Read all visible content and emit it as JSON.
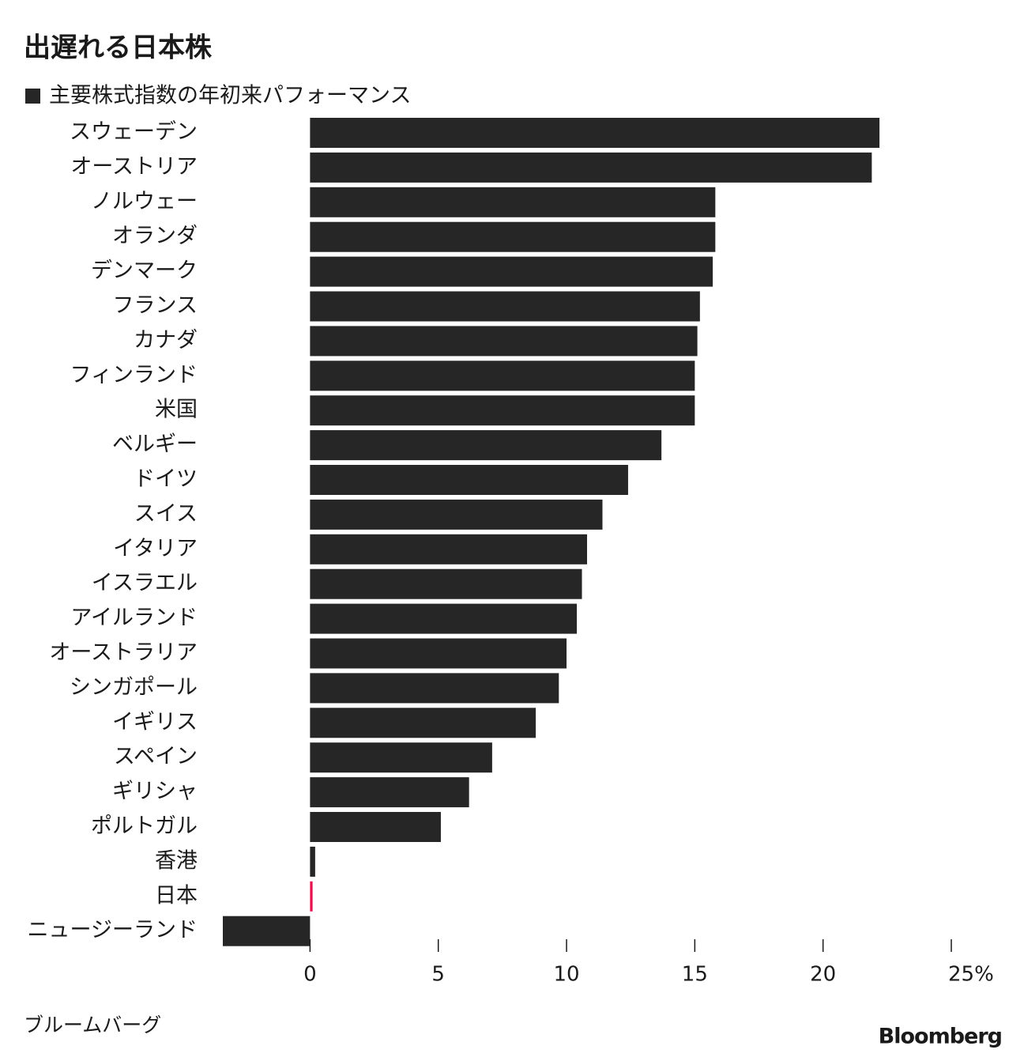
{
  "chart_data": {
    "type": "hbar",
    "title": "出遅れる日本株",
    "categories": [
      "スウェーデン",
      "オーストリア",
      "ノルウェー",
      "オランダ",
      "デンマーク",
      "フランス",
      "カナダ",
      "フィンランド",
      "米国",
      "ベルギー",
      "ドイツ",
      "スイス",
      "イタリア",
      "イスラエル",
      "アイルランド",
      "オーストラリア",
      "シンガポール",
      "イギリス",
      "スペイン",
      "ギリシャ",
      "ポルトガル",
      "香港",
      "日本",
      "ニュージーランド"
    ],
    "series": [
      {
        "name": "主要株式指数の年初来パフォーマンス",
        "color": "#262626",
        "values": [
          22.2,
          21.9,
          15.8,
          15.8,
          15.7,
          15.2,
          15.1,
          15.0,
          15.0,
          13.7,
          12.4,
          11.4,
          10.8,
          10.6,
          10.4,
          10.0,
          9.7,
          8.8,
          7.1,
          6.2,
          5.1,
          0.2,
          0.1,
          -3.4
        ],
        "colors": [
          "#262626",
          "#262626",
          "#262626",
          "#262626",
          "#262626",
          "#262626",
          "#262626",
          "#262626",
          "#262626",
          "#262626",
          "#262626",
          "#262626",
          "#262626",
          "#262626",
          "#262626",
          "#262626",
          "#262626",
          "#262626",
          "#262626",
          "#262626",
          "#262626",
          "#262626",
          "#e8114d",
          "#262626"
        ]
      }
    ],
    "xlim": [
      -3.4,
      25
    ],
    "xticks": [
      0,
      5,
      10,
      15,
      20,
      {
        "value": 25,
        "label": "25%"
      }
    ],
    "source": "ブルームバーグ",
    "logo": "Bloomberg"
  }
}
